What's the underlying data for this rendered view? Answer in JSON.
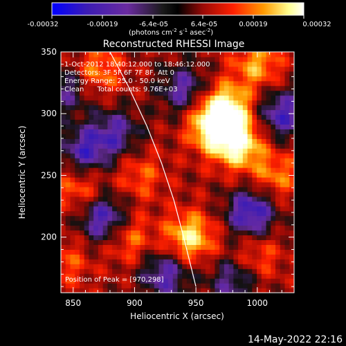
{
  "colorbar": {
    "ticks": [
      "-0.00032",
      "-0.00019",
      "-6.4e-05",
      "6.4e-05",
      "0.00019",
      "0.00032"
    ],
    "unit_label_main": "(photons cm",
    "unit_exp1": "-2",
    "unit_mid": " s",
    "unit_exp2": "-1",
    "unit_after": " asec",
    "unit_exp3": "-2",
    "unit_end": ")"
  },
  "chart_data": {
    "type": "heatmap",
    "title": "Reconstructed RHESSI Image",
    "xlabel": "Heliocentric X (arcsec)",
    "ylabel": "Heliocentric Y (arcsec)",
    "xlim": [
      840,
      1030
    ],
    "ylim": [
      155,
      350
    ],
    "xticks": [
      850,
      900,
      950,
      1000
    ],
    "xtick_labels": [
      "850",
      "900",
      "950",
      "1000"
    ],
    "yticks": [
      200,
      250,
      300,
      350
    ],
    "ytick_labels": [
      "200",
      "250",
      "300",
      "350"
    ],
    "color_range": [
      -0.00032,
      0.00032
    ],
    "colormap": [
      "#0000ff",
      "#3c1cb4",
      "#6a2ba0",
      "#111111",
      "#9a0a06",
      "#ff2000",
      "#ff9a00",
      "#ffff90",
      "#ffffff"
    ],
    "limb": [
      [
        880,
        350
      ],
      [
        895,
        322
      ],
      [
        910,
        290
      ],
      [
        922,
        260
      ],
      [
        932,
        230
      ],
      [
        940,
        200
      ],
      [
        947,
        172
      ],
      [
        950,
        160
      ]
    ],
    "peak_marker": [
      970,
      298
    ],
    "sources": [
      {
        "x": 965,
        "y": 290,
        "intensity": 0.0003
      },
      {
        "x": 985,
        "y": 275,
        "intensity": 0.00026
      },
      {
        "x": 975,
        "y": 305,
        "intensity": 0.00024
      },
      {
        "x": 945,
        "y": 200,
        "intensity": 0.00024
      },
      {
        "x": 1000,
        "y": 340,
        "intensity": 0.00017
      },
      {
        "x": 870,
        "y": 335,
        "intensity": 0.00015
      },
      {
        "x": 855,
        "y": 240,
        "intensity": 0.00013
      },
      {
        "x": 895,
        "y": 200,
        "intensity": 0.00014
      },
      {
        "x": 1015,
        "y": 250,
        "intensity": 0.00014
      },
      {
        "x": 905,
        "y": 250,
        "intensity": 0.00011
      },
      {
        "x": 1000,
        "y": 185,
        "intensity": 0.00011
      },
      {
        "x": 845,
        "y": 180,
        "intensity": 0.0001
      },
      {
        "x": 875,
        "y": 215,
        "intensity": -0.00024
      },
      {
        "x": 860,
        "y": 270,
        "intensity": -0.00021
      },
      {
        "x": 995,
        "y": 220,
        "intensity": -0.00026
      },
      {
        "x": 1020,
        "y": 300,
        "intensity": -0.00022
      },
      {
        "x": 925,
        "y": 170,
        "intensity": -0.0002
      },
      {
        "x": 940,
        "y": 320,
        "intensity": -0.00018
      },
      {
        "x": 885,
        "y": 285,
        "intensity": -0.00017
      },
      {
        "x": 980,
        "y": 165,
        "intensity": -0.00016
      },
      {
        "x": 845,
        "y": 320,
        "intensity": -0.00015
      }
    ]
  },
  "annotations": {
    "line1": "1-Oct-2012 18:40:12.000 to 18:46:12.000",
    "line2": "Detectors: 3F 5F 6F 7F 8F, Att 0",
    "line3": "Energy Range: 25.0 - 50.0 keV",
    "line4": "Clean      Total counts: 9.76E+03",
    "peak_text": "Position of Peak = [970,298]"
  },
  "timestamp": "14-May-2022 22:16"
}
